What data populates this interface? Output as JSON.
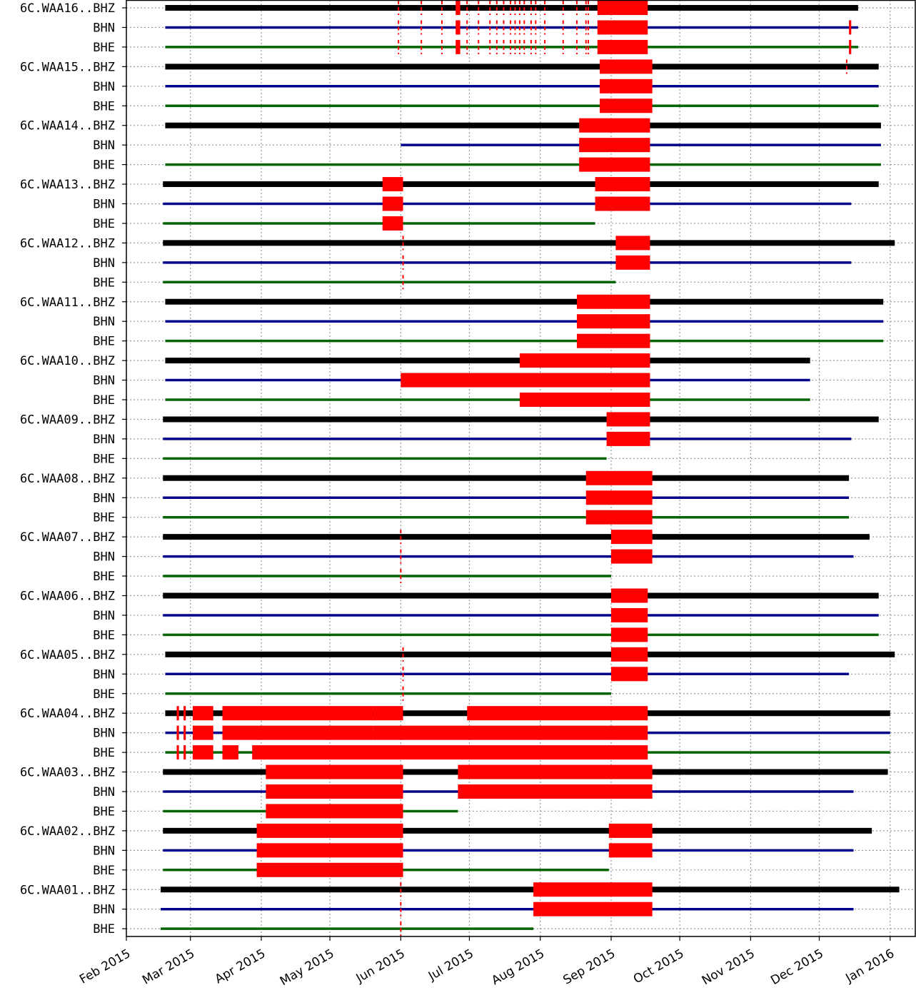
{
  "chart_data": {
    "type": "timeline",
    "title": "",
    "xlabel": "",
    "ylabel": "",
    "x_range": [
      "2015-02-01",
      "2016-01-12"
    ],
    "grid": true,
    "x_ticks": [
      {
        "date": "2015-02-01",
        "label": "Feb 2015"
      },
      {
        "date": "2015-03-01",
        "label": "Mar 2015"
      },
      {
        "date": "2015-04-01",
        "label": "Apr 2015"
      },
      {
        "date": "2015-05-01",
        "label": "May 2015"
      },
      {
        "date": "2015-06-01",
        "label": "Jun 2015"
      },
      {
        "date": "2015-07-01",
        "label": "Jul 2015"
      },
      {
        "date": "2015-08-01",
        "label": "Aug 2015"
      },
      {
        "date": "2015-09-01",
        "label": "Sep 2015"
      },
      {
        "date": "2015-10-01",
        "label": "Oct 2015"
      },
      {
        "date": "2015-11-01",
        "label": "Nov 2015"
      },
      {
        "date": "2015-12-01",
        "label": "Dec 2015"
      },
      {
        "date": "2016-01-01",
        "label": "Jan 2016"
      }
    ],
    "channel_colors": {
      "BHZ": "#000000",
      "BHN": "#00008b",
      "BHE": "#006400"
    },
    "gap_color": "#ff0000",
    "rows": [
      {
        "label": "6C.WAA16..BHZ",
        "channel": "BHZ",
        "start": "2015-02-18",
        "end": "2015-12-18",
        "gaps": [
          [
            "2015-06-25",
            "2015-06-27"
          ],
          [
            "2015-08-26",
            "2015-09-17"
          ]
        ],
        "events": [
          "2015-05-31",
          "2015-06-10",
          "2015-06-19",
          "2015-06-30",
          "2015-07-05",
          "2015-07-10",
          "2015-07-13",
          "2015-07-16",
          "2015-07-19",
          "2015-07-21",
          "2015-07-23",
          "2015-07-25",
          "2015-07-28",
          "2015-07-30",
          "2015-08-03",
          "2015-08-11",
          "2015-08-17",
          "2015-08-21",
          "2015-08-22"
        ]
      },
      {
        "label": "BHN",
        "channel": "BHN",
        "start": "2015-02-18",
        "end": "2015-12-18",
        "gaps": [
          [
            "2015-06-25",
            "2015-06-27"
          ],
          [
            "2015-08-26",
            "2015-09-17"
          ],
          [
            "2015-12-14",
            "2015-12-15"
          ]
        ],
        "events": [
          "2015-05-31",
          "2015-06-10",
          "2015-06-19",
          "2015-06-30",
          "2015-07-05",
          "2015-07-10",
          "2015-07-13",
          "2015-07-16",
          "2015-07-19",
          "2015-07-21",
          "2015-07-23",
          "2015-07-25",
          "2015-07-28",
          "2015-07-30",
          "2015-08-03",
          "2015-08-11",
          "2015-08-17",
          "2015-08-21",
          "2015-08-22"
        ]
      },
      {
        "label": "BHE",
        "channel": "BHE",
        "start": "2015-02-18",
        "end": "2015-12-18",
        "gaps": [
          [
            "2015-06-25",
            "2015-06-27"
          ],
          [
            "2015-08-26",
            "2015-09-17"
          ],
          [
            "2015-12-14",
            "2015-12-15"
          ]
        ],
        "events": [
          "2015-05-31",
          "2015-06-10",
          "2015-06-19",
          "2015-06-30",
          "2015-07-05",
          "2015-07-10",
          "2015-07-13",
          "2015-07-16",
          "2015-07-19",
          "2015-07-21",
          "2015-07-23",
          "2015-07-25",
          "2015-07-28",
          "2015-07-30",
          "2015-08-03",
          "2015-08-11",
          "2015-08-17",
          "2015-08-21",
          "2015-08-22"
        ]
      },
      {
        "label": "6C.WAA15..BHZ",
        "channel": "BHZ",
        "start": "2015-02-18",
        "end": "2015-12-27",
        "gaps": [
          [
            "2015-08-27",
            "2015-09-19"
          ]
        ],
        "events": [
          "2015-12-13"
        ]
      },
      {
        "label": "BHN",
        "channel": "BHN",
        "start": "2015-02-18",
        "end": "2015-12-27",
        "gaps": [
          [
            "2015-08-27",
            "2015-09-19"
          ]
        ],
        "events": []
      },
      {
        "label": "BHE",
        "channel": "BHE",
        "start": "2015-02-18",
        "end": "2015-12-27",
        "gaps": [
          [
            "2015-08-27",
            "2015-09-19"
          ]
        ],
        "events": []
      },
      {
        "label": "6C.WAA14..BHZ",
        "channel": "BHZ",
        "start": "2015-02-18",
        "end": "2015-12-28",
        "gaps": [
          [
            "2015-08-18",
            "2015-09-18"
          ]
        ],
        "events": []
      },
      {
        "label": "BHN",
        "channel": "BHN",
        "start": "2015-06-01",
        "end": "2015-12-28",
        "gaps": [
          [
            "2015-08-18",
            "2015-09-18"
          ]
        ],
        "events": []
      },
      {
        "label": "BHE",
        "channel": "BHE",
        "start": "2015-02-18",
        "end": "2015-12-28",
        "gaps": [
          [
            "2015-08-18",
            "2015-09-18"
          ]
        ],
        "events": []
      },
      {
        "label": "6C.WAA13..BHZ",
        "channel": "BHZ",
        "start": "2015-02-17",
        "end": "2015-12-27",
        "gaps": [
          [
            "2015-05-24",
            "2015-06-02"
          ],
          [
            "2015-08-25",
            "2015-09-18"
          ]
        ],
        "events": []
      },
      {
        "label": "BHN",
        "channel": "BHN",
        "start": "2015-02-17",
        "end": "2015-12-15",
        "gaps": [
          [
            "2015-05-24",
            "2015-06-02"
          ],
          [
            "2015-08-25",
            "2015-09-18"
          ]
        ],
        "events": []
      },
      {
        "label": "BHE",
        "channel": "BHE",
        "start": "2015-02-17",
        "end": "2015-08-25",
        "gaps": [
          [
            "2015-05-24",
            "2015-06-02"
          ]
        ],
        "events": []
      },
      {
        "label": "6C.WAA12..BHZ",
        "channel": "BHZ",
        "start": "2015-02-17",
        "end": "2016-01-03",
        "gaps": [
          [
            "2015-09-03",
            "2015-09-18"
          ]
        ],
        "events": [
          "2015-06-02"
        ]
      },
      {
        "label": "BHN",
        "channel": "BHN",
        "start": "2015-02-17",
        "end": "2015-12-15",
        "gaps": [
          [
            "2015-09-03",
            "2015-09-18"
          ]
        ],
        "events": [
          "2015-06-02"
        ]
      },
      {
        "label": "BHE",
        "channel": "BHE",
        "start": "2015-02-17",
        "end": "2015-09-03",
        "gaps": [],
        "events": [
          "2015-06-02"
        ]
      },
      {
        "label": "6C.WAA11..BHZ",
        "channel": "BHZ",
        "start": "2015-02-18",
        "end": "2015-12-29",
        "gaps": [
          [
            "2015-08-17",
            "2015-09-18"
          ]
        ],
        "events": []
      },
      {
        "label": "BHN",
        "channel": "BHN",
        "start": "2015-02-18",
        "end": "2015-12-29",
        "gaps": [
          [
            "2015-08-17",
            "2015-09-18"
          ]
        ],
        "events": []
      },
      {
        "label": "BHE",
        "channel": "BHE",
        "start": "2015-02-18",
        "end": "2015-12-29",
        "gaps": [
          [
            "2015-08-17",
            "2015-09-18"
          ]
        ],
        "events": []
      },
      {
        "label": "6C.WAA10..BHZ",
        "channel": "BHZ",
        "start": "2015-02-18",
        "end": "2015-11-27",
        "gaps": [
          [
            "2015-07-23",
            "2015-09-18"
          ]
        ],
        "events": []
      },
      {
        "label": "BHN",
        "channel": "BHN",
        "start": "2015-02-18",
        "end": "2015-11-27",
        "gaps": [
          [
            "2015-06-01",
            "2015-09-18"
          ]
        ],
        "events": []
      },
      {
        "label": "BHE",
        "channel": "BHE",
        "start": "2015-02-18",
        "end": "2015-11-27",
        "gaps": [
          [
            "2015-07-23",
            "2015-09-18"
          ]
        ],
        "events": []
      },
      {
        "label": "6C.WAA09..BHZ",
        "channel": "BHZ",
        "start": "2015-02-17",
        "end": "2015-12-27",
        "gaps": [
          [
            "2015-08-30",
            "2015-09-18"
          ]
        ],
        "events": []
      },
      {
        "label": "BHN",
        "channel": "BHN",
        "start": "2015-02-17",
        "end": "2015-12-15",
        "gaps": [
          [
            "2015-08-30",
            "2015-09-18"
          ]
        ],
        "events": []
      },
      {
        "label": "BHE",
        "channel": "BHE",
        "start": "2015-02-17",
        "end": "2015-08-30",
        "gaps": [],
        "events": []
      },
      {
        "label": "6C.WAA08..BHZ",
        "channel": "BHZ",
        "start": "2015-02-17",
        "end": "2015-12-14",
        "gaps": [
          [
            "2015-08-21",
            "2015-09-19"
          ]
        ],
        "events": []
      },
      {
        "label": "BHN",
        "channel": "BHN",
        "start": "2015-02-17",
        "end": "2015-12-14",
        "gaps": [
          [
            "2015-08-21",
            "2015-09-19"
          ]
        ],
        "events": []
      },
      {
        "label": "BHE",
        "channel": "BHE",
        "start": "2015-02-17",
        "end": "2015-12-14",
        "gaps": [
          [
            "2015-08-21",
            "2015-09-19"
          ]
        ],
        "events": []
      },
      {
        "label": "6C.WAA07..BHZ",
        "channel": "BHZ",
        "start": "2015-02-17",
        "end": "2015-12-23",
        "gaps": [
          [
            "2015-09-01",
            "2015-09-19"
          ]
        ],
        "events": [
          "2015-06-01"
        ]
      },
      {
        "label": "BHN",
        "channel": "BHN",
        "start": "2015-02-17",
        "end": "2015-12-16",
        "gaps": [
          [
            "2015-09-01",
            "2015-09-19"
          ]
        ],
        "events": [
          "2015-06-01"
        ]
      },
      {
        "label": "BHE",
        "channel": "BHE",
        "start": "2015-02-17",
        "end": "2015-09-01",
        "gaps": [],
        "events": [
          "2015-06-01"
        ]
      },
      {
        "label": "6C.WAA06..BHZ",
        "channel": "BHZ",
        "start": "2015-02-17",
        "end": "2015-12-27",
        "gaps": [
          [
            "2015-09-01",
            "2015-09-17"
          ]
        ],
        "events": []
      },
      {
        "label": "BHN",
        "channel": "BHN",
        "start": "2015-02-17",
        "end": "2015-12-27",
        "gaps": [
          [
            "2015-09-01",
            "2015-09-17"
          ]
        ],
        "events": []
      },
      {
        "label": "BHE",
        "channel": "BHE",
        "start": "2015-02-17",
        "end": "2015-12-27",
        "gaps": [
          [
            "2015-09-01",
            "2015-09-17"
          ]
        ],
        "events": []
      },
      {
        "label": "6C.WAA05..BHZ",
        "channel": "BHZ",
        "start": "2015-02-18",
        "end": "2016-01-03",
        "gaps": [
          [
            "2015-09-01",
            "2015-09-17"
          ]
        ],
        "events": [
          "2015-06-02"
        ]
      },
      {
        "label": "BHN",
        "channel": "BHN",
        "start": "2015-02-18",
        "end": "2015-12-14",
        "gaps": [
          [
            "2015-09-01",
            "2015-09-17"
          ]
        ],
        "events": [
          "2015-06-02"
        ]
      },
      {
        "label": "BHE",
        "channel": "BHE",
        "start": "2015-02-18",
        "end": "2015-09-01",
        "gaps": [],
        "events": [
          "2015-06-02"
        ]
      },
      {
        "label": "6C.WAA04..BHZ",
        "channel": "BHZ",
        "start": "2015-02-18",
        "end": "2016-01-01",
        "gaps": [
          [
            "2015-02-23",
            "2015-02-24"
          ],
          [
            "2015-02-26",
            "2015-02-27"
          ],
          [
            "2015-03-02",
            "2015-03-11"
          ],
          [
            "2015-03-15",
            "2015-05-20"
          ],
          [
            "2015-05-20",
            "2015-06-02"
          ],
          [
            "2015-06-30",
            "2015-09-17"
          ]
        ],
        "events": []
      },
      {
        "label": "BHN",
        "channel": "BHN",
        "start": "2015-02-18",
        "end": "2016-01-01",
        "gaps": [
          [
            "2015-02-23",
            "2015-02-24"
          ],
          [
            "2015-02-26",
            "2015-02-27"
          ],
          [
            "2015-03-02",
            "2015-03-11"
          ],
          [
            "2015-03-15",
            "2015-05-20"
          ],
          [
            "2015-05-20",
            "2015-09-17"
          ]
        ],
        "events": []
      },
      {
        "label": "BHE",
        "channel": "BHE",
        "start": "2015-02-18",
        "end": "2016-01-01",
        "gaps": [
          [
            "2015-02-23",
            "2015-02-24"
          ],
          [
            "2015-02-26",
            "2015-02-27"
          ],
          [
            "2015-03-02",
            "2015-03-11"
          ],
          [
            "2015-03-15",
            "2015-03-22"
          ],
          [
            "2015-03-28",
            "2015-09-17"
          ]
        ],
        "events": []
      },
      {
        "label": "6C.WAA03..BHZ",
        "channel": "BHZ",
        "start": "2015-02-17",
        "end": "2015-12-31",
        "gaps": [
          [
            "2015-04-03",
            "2015-06-02"
          ],
          [
            "2015-06-26",
            "2015-09-19"
          ]
        ],
        "events": []
      },
      {
        "label": "BHN",
        "channel": "BHN",
        "start": "2015-02-17",
        "end": "2015-12-16",
        "gaps": [
          [
            "2015-04-03",
            "2015-06-02"
          ],
          [
            "2015-06-26",
            "2015-09-19"
          ]
        ],
        "events": []
      },
      {
        "label": "BHE",
        "channel": "BHE",
        "start": "2015-02-17",
        "end": "2015-06-26",
        "gaps": [
          [
            "2015-04-03",
            "2015-06-02"
          ]
        ],
        "events": []
      },
      {
        "label": "6C.WAA02..BHZ",
        "channel": "BHZ",
        "start": "2015-02-17",
        "end": "2015-12-24",
        "gaps": [
          [
            "2015-03-30",
            "2015-06-02"
          ],
          [
            "2015-08-31",
            "2015-09-19"
          ]
        ],
        "events": []
      },
      {
        "label": "BHN",
        "channel": "BHN",
        "start": "2015-02-17",
        "end": "2015-12-16",
        "gaps": [
          [
            "2015-03-30",
            "2015-06-02"
          ],
          [
            "2015-08-31",
            "2015-09-19"
          ]
        ],
        "events": []
      },
      {
        "label": "BHE",
        "channel": "BHE",
        "start": "2015-02-17",
        "end": "2015-08-31",
        "gaps": [
          [
            "2015-03-30",
            "2015-06-02"
          ]
        ],
        "events": []
      },
      {
        "label": "6C.WAA01..BHZ",
        "channel": "BHZ",
        "start": "2015-02-16",
        "end": "2016-01-05",
        "gaps": [
          [
            "2015-07-29",
            "2015-09-19"
          ]
        ],
        "events": [
          "2015-06-01"
        ]
      },
      {
        "label": "BHN",
        "channel": "BHN",
        "start": "2015-02-16",
        "end": "2015-12-16",
        "gaps": [
          [
            "2015-07-29",
            "2015-09-19"
          ]
        ],
        "events": [
          "2015-06-01"
        ]
      },
      {
        "label": "BHE",
        "channel": "BHE",
        "start": "2015-02-16",
        "end": "2015-07-29",
        "gaps": [],
        "events": [
          "2015-06-01"
        ]
      }
    ]
  }
}
